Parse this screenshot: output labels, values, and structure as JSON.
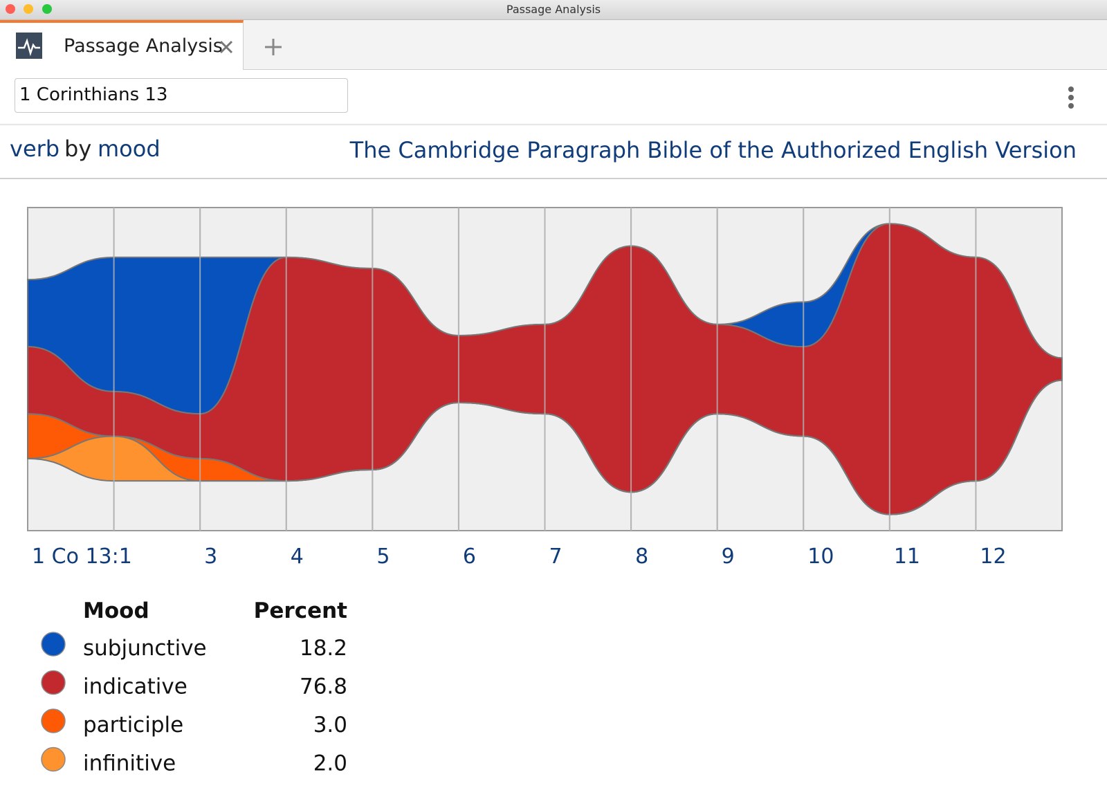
{
  "window": {
    "title": "Passage Analysis"
  },
  "tab": {
    "label": "Passage Analysis"
  },
  "search": {
    "value": "1 Corinthians 13"
  },
  "header": {
    "row_field": "verb",
    "by": "by",
    "column_field": "mood",
    "resource": "The Cambridge Paragraph Bible of the Authorized English Version"
  },
  "chart_data": {
    "type": "stream",
    "categories": [
      "1 Co 13:1",
      null,
      "3",
      "4",
      "5",
      "6",
      "7",
      "8",
      "9",
      "10",
      "11",
      "12",
      null
    ],
    "series": [
      {
        "name": "subjunctive",
        "color": "#0752bd",
        "values": [
          3,
          6,
          7,
          0,
          0,
          0,
          0,
          0,
          0,
          2,
          0,
          0,
          0
        ]
      },
      {
        "name": "indicative",
        "color": "#c1292e",
        "values": [
          3,
          2,
          2,
          10,
          9,
          3,
          4,
          11,
          4,
          4,
          13,
          10,
          1
        ]
      },
      {
        "name": "participle",
        "color": "#fe5a06",
        "values": [
          2,
          0,
          1,
          0,
          0,
          0,
          0,
          0,
          0,
          0,
          0,
          0,
          0
        ]
      },
      {
        "name": "infinitive",
        "color": "#fd922f",
        "values": [
          0,
          2,
          0,
          0,
          0,
          0,
          0,
          0,
          0,
          0,
          0,
          0,
          0
        ]
      }
    ]
  },
  "legend": {
    "headers": [
      "Mood",
      "Percent"
    ],
    "percents": [
      "18.2",
      "76.8",
      "3.0",
      "2.0"
    ]
  }
}
